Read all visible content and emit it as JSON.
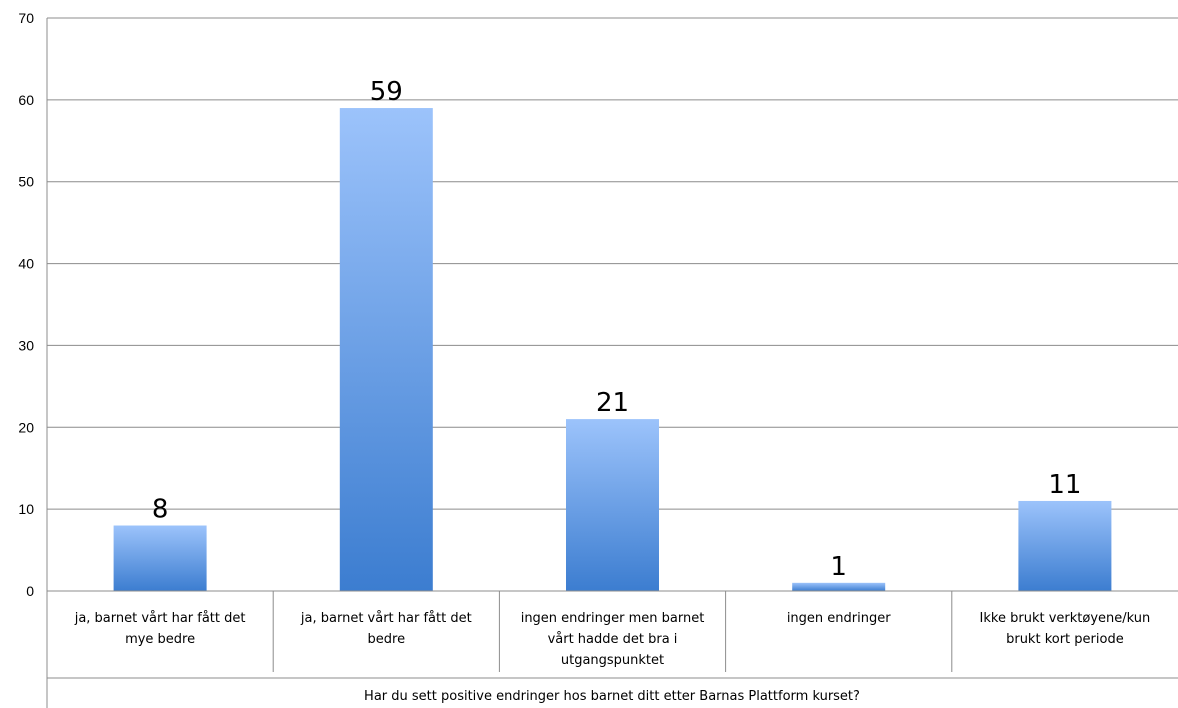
{
  "chart_data": {
    "type": "bar",
    "title": "",
    "ylabel": "",
    "xlabel": "Har du sett positive endringer hos barnet ditt etter Barnas Plattform kurset?",
    "ylim": [
      0,
      70
    ],
    "yticks": [
      0,
      10,
      20,
      30,
      40,
      50,
      60,
      70
    ],
    "grid": true,
    "legend": "none",
    "categories": [
      [
        "ja, barnet vårt har fått det",
        "mye bedre"
      ],
      [
        "ja, barnet vårt har fått det",
        "bedre"
      ],
      [
        "ingen endringer men barnet",
        "vårt hadde det bra i",
        "utgangspunktet"
      ],
      [
        "ingen endringer"
      ],
      [
        "Ikke brukt verktøyene/kun",
        "brukt kort periode"
      ]
    ],
    "values": [
      8,
      59,
      21,
      1,
      11
    ],
    "data_labels": [
      "8",
      "59",
      "21",
      "1",
      "11"
    ],
    "colors": {
      "bar_top": "#9cc3fb",
      "bar_bottom": "#3c7dd0",
      "grid": "#8c8c8c",
      "axis": "#8c8c8c"
    }
  }
}
